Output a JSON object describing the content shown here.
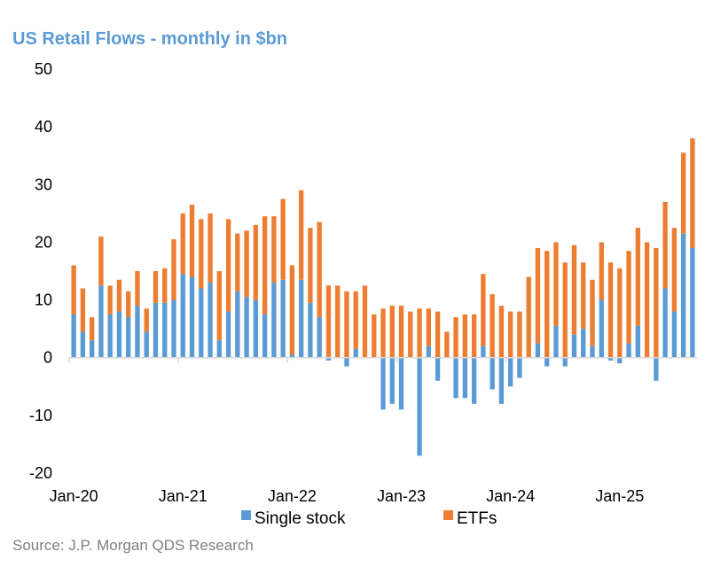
{
  "chart_data": {
    "type": "bar",
    "stacked": true,
    "title": "US Retail Flows - monthly in $bn",
    "source": "Source: J.P. Morgan QDS Research",
    "ylim": [
      -20,
      50
    ],
    "yticks": [
      -20,
      -10,
      0,
      10,
      20,
      30,
      40,
      50
    ],
    "xticks": [
      "Jan-20",
      "Jan-21",
      "Jan-22",
      "Jan-23",
      "Jan-24",
      "Jan-25"
    ],
    "xtick_indices": [
      0,
      12,
      24,
      36,
      48,
      60
    ],
    "legend_position": "bottom",
    "colors": {
      "single_stock": "#5b9bd5",
      "etfs": "#ed7d31"
    },
    "series": [
      {
        "name": "Single stock",
        "values": [
          7.5,
          4.5,
          3,
          12.5,
          7.5,
          8,
          7,
          9,
          4.5,
          9.5,
          9.5,
          10,
          14.5,
          14,
          12,
          13,
          3,
          8,
          11.5,
          10.5,
          10,
          7.5,
          13,
          13.5,
          0.5,
          13.5,
          9.5,
          7,
          -0.5,
          0,
          -1.5,
          1.5,
          0,
          0,
          -9,
          -8,
          -9,
          0,
          -17,
          2,
          -4,
          0,
          -7,
          -7,
          -8,
          2,
          -5.5,
          -8,
          -5,
          -3.5,
          0,
          2.5,
          -1.5,
          5.5,
          -1.5,
          4,
          5,
          2,
          10,
          -0.5,
          -1,
          2.5,
          5.5,
          0,
          -4,
          12,
          8,
          21.5,
          19
        ]
      },
      {
        "name": "ETFs",
        "values": [
          8.5,
          7.5,
          4,
          8.5,
          5,
          5.5,
          4.5,
          6,
          4,
          5.5,
          6,
          10.5,
          10.5,
          12.5,
          12,
          12,
          12,
          16,
          10,
          11.5,
          13,
          17,
          11.5,
          14,
          15.5,
          15.5,
          13,
          16.5,
          12.5,
          12.5,
          11.5,
          10,
          12.5,
          7.5,
          8.5,
          9,
          9,
          8,
          8.5,
          6.5,
          8,
          4.5,
          7,
          7.5,
          7.5,
          12.5,
          11,
          9,
          8,
          8,
          14,
          16.5,
          18.5,
          14.5,
          16.5,
          15.5,
          11.5,
          11.5,
          10,
          16.5,
          15.5,
          16,
          17,
          20,
          19,
          15,
          14.5,
          14,
          19
        ]
      }
    ]
  }
}
